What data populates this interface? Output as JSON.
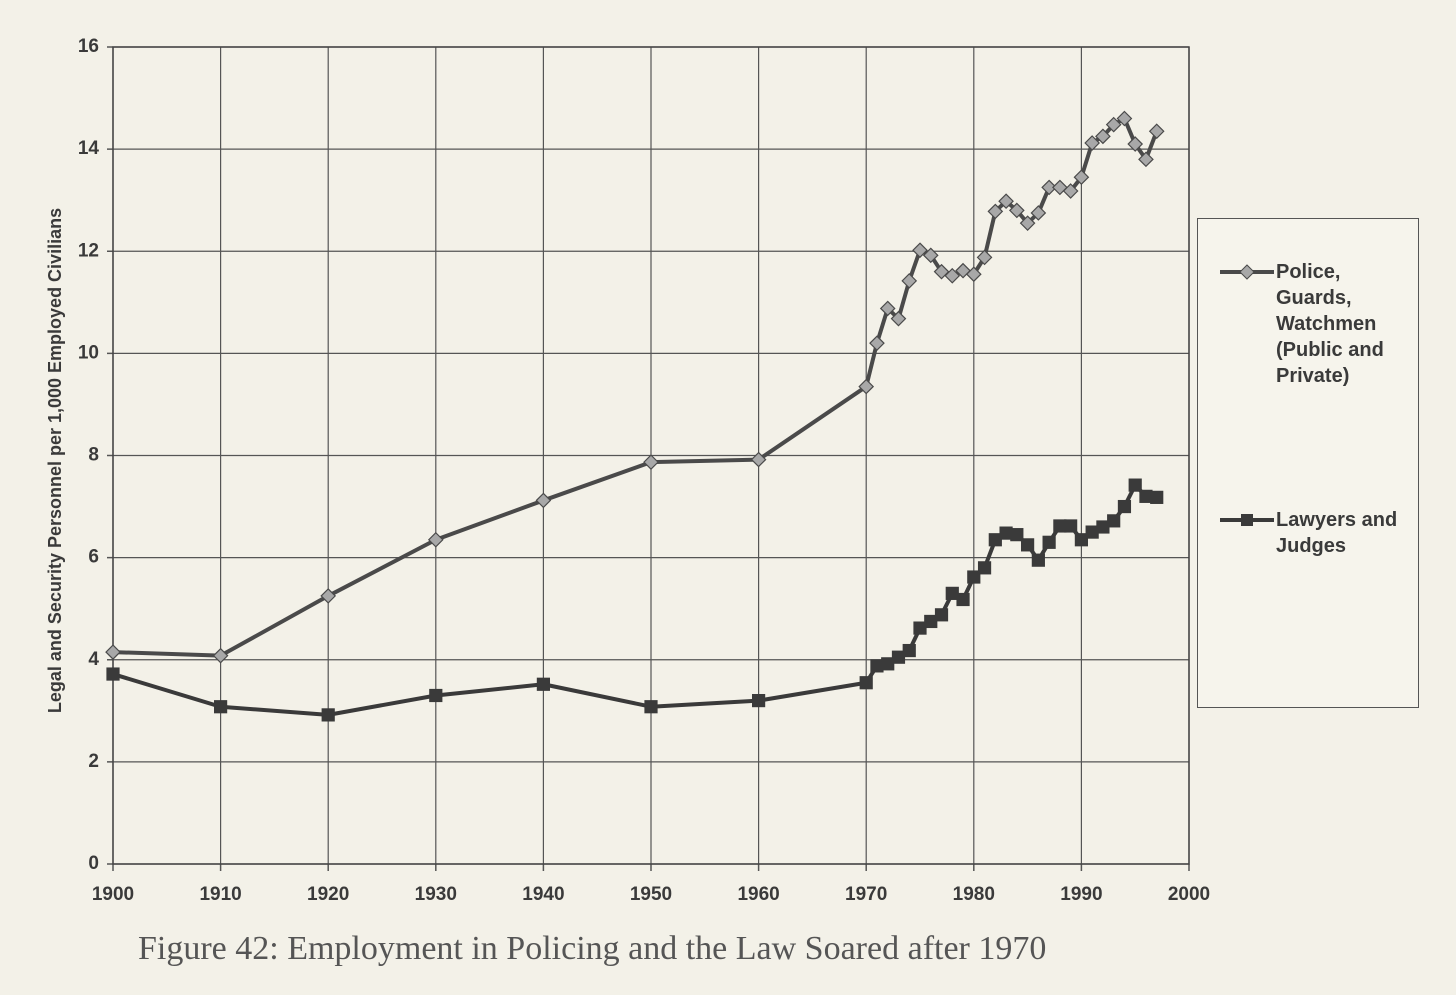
{
  "chart_data": {
    "type": "line",
    "caption": "Figure 42: Employment in Policing and the Law Soared after 1970",
    "y_label": "Legal and Security Personnel per 1,000 Employed Civilians",
    "x": [
      1900,
      1910,
      1920,
      1930,
      1940,
      1950,
      1960,
      1970,
      1971,
      1972,
      1973,
      1974,
      1975,
      1976,
      1977,
      1978,
      1979,
      1980,
      1981,
      1982,
      1983,
      1984,
      1985,
      1986,
      1987,
      1988,
      1989,
      1990,
      1991,
      1992,
      1993,
      1994,
      1995,
      1996,
      1997
    ],
    "series": [
      {
        "name": "Police, Guards, Watchmen (Public and Private)",
        "color": "#4a4a4a",
        "marker": "diamond",
        "values": [
          4.15,
          4.08,
          5.25,
          6.35,
          7.12,
          7.87,
          7.92,
          9.35,
          10.2,
          10.88,
          10.68,
          11.42,
          12.02,
          11.92,
          11.6,
          11.52,
          11.62,
          11.55,
          11.88,
          12.78,
          12.98,
          12.8,
          12.55,
          12.75,
          13.25,
          13.25,
          13.18,
          13.45,
          14.12,
          14.25,
          14.48,
          14.6,
          14.1,
          13.8,
          14.35
        ]
      },
      {
        "name": "Lawyers and Judges",
        "color": "#3a3a3a",
        "marker": "square",
        "values": [
          3.72,
          3.08,
          2.92,
          3.3,
          3.52,
          3.08,
          3.2,
          3.55,
          3.88,
          3.92,
          4.05,
          4.18,
          4.62,
          4.75,
          4.88,
          5.3,
          5.18,
          5.62,
          5.8,
          6.35,
          6.48,
          6.45,
          6.25,
          5.95,
          6.3,
          6.62,
          6.62,
          6.35,
          6.5,
          6.6,
          6.72,
          7.0,
          7.42,
          7.2,
          7.18
        ]
      }
    ],
    "xlim": [
      1900,
      2000
    ],
    "xticks": [
      1900,
      1910,
      1920,
      1930,
      1940,
      1950,
      1960,
      1970,
      1980,
      1990,
      2000
    ],
    "ylim": [
      0,
      16
    ],
    "yticks": [
      0,
      2,
      4,
      6,
      8,
      10,
      12,
      14,
      16
    ],
    "grid": true,
    "legend": "right"
  }
}
